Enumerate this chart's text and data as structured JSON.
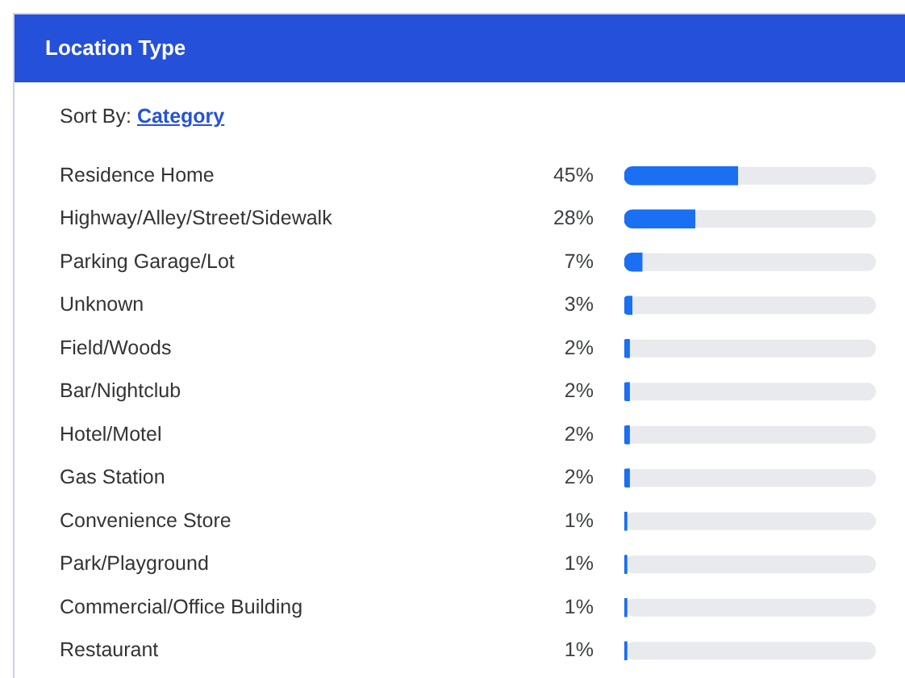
{
  "chart_data": {
    "type": "bar",
    "orientation": "horizontal",
    "title": "Location Type",
    "subtitle": "Sort By: Category",
    "categories": [
      "Residence Home",
      "Highway/Alley/Street/Sidewalk",
      "Parking Garage/Lot",
      "Unknown",
      "Field/Woods",
      "Bar/Nightclub",
      "Hotel/Motel",
      "Gas Station",
      "Convenience Store",
      "Park/Playground",
      "Commercial/Office Building",
      "Restaurant"
    ],
    "values": [
      45,
      28,
      7,
      3,
      2,
      2,
      2,
      2,
      1,
      1,
      1,
      1
    ],
    "value_labels": [
      "45%",
      "28%",
      "7%",
      "3%",
      "2%",
      "2%",
      "2%",
      "2%",
      "1%",
      "1%",
      "1%",
      "1%"
    ],
    "color": "#1a6ff2",
    "xlim": [
      0,
      100
    ],
    "tick_labels": "y"
  }
}
